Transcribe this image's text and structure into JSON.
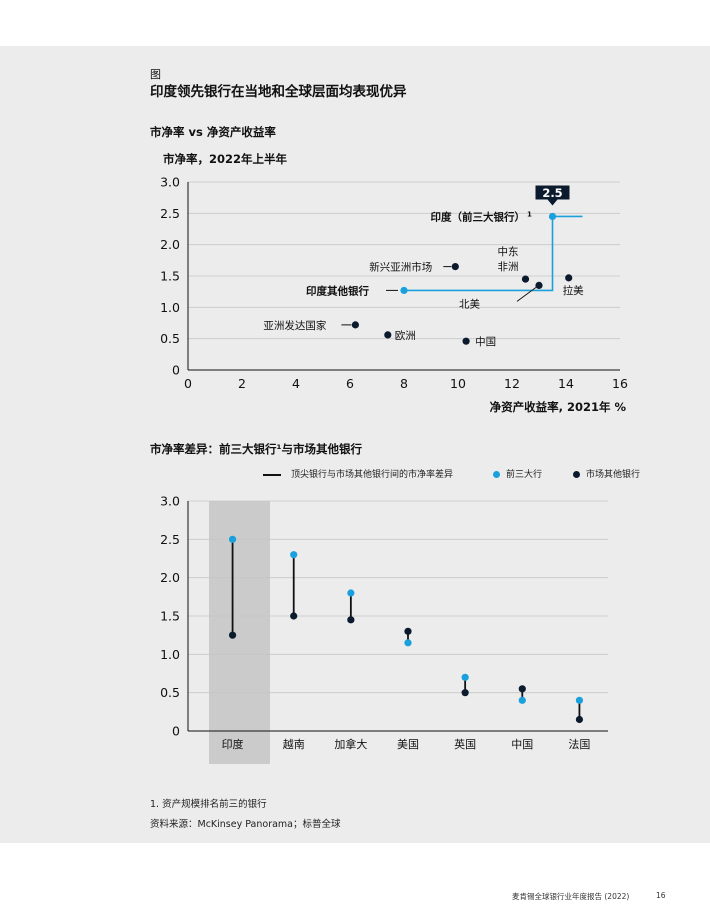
{
  "header": {
    "figure_label": "图",
    "figure_title": "印度领先银行在当地和全球层面均表现优异"
  },
  "chart1": {
    "title": "市净率 vs 净资产收益率",
    "subtitle": "市净率，2022年上半年"
  },
  "chart2": {
    "title": "市净率差异：前三大银行¹与市场其他银行",
    "legend": {
      "line_label": "顶尖银行与市场其他银行间的市净率差异",
      "top3_label": "前三大行",
      "others_label": "市场其他银行"
    }
  },
  "footnotes": {
    "note1": "1. 资产规模排名前三的银行",
    "source": "资料来源：McKinsey Panorama；标普全球"
  },
  "footer": {
    "report": "麦肯锡全球银行业年度报告 (2022)",
    "page": "16"
  },
  "colors": {
    "accent_blue": "#1aa0dc",
    "dark_point": "#0c1a2e",
    "panel_bg": "#ececec",
    "highlight_bg": "#cbcbcb"
  },
  "chart_data": [
    {
      "type": "scatter",
      "title": "市净率 vs 净资产收益率",
      "subtitle": "市净率，2022年上半年",
      "xlabel": "净资产收益率, 2021年 %",
      "ylabel": "",
      "xlim": [
        0,
        16
      ],
      "ylim": [
        0,
        3.0
      ],
      "x_ticks": [
        "0",
        "2",
        "4",
        "6",
        "8",
        "10",
        "12",
        "14",
        "16"
      ],
      "y_ticks": [
        "0",
        "0.5",
        "1.0",
        "1.5",
        "2.0",
        "2.5",
        "3.0"
      ],
      "grid": true,
      "points": [
        {
          "label": "印度（前三大银行）",
          "x": 13.5,
          "y": 2.45,
          "highlight": true,
          "callout": "2.5",
          "bold": true,
          "sup": "1"
        },
        {
          "label": "印度其他银行",
          "x": 8.0,
          "y": 1.27,
          "highlight": true,
          "bold": true
        },
        {
          "label": "新兴亚洲市场",
          "x": 9.9,
          "y": 1.65
        },
        {
          "label": "中东\n非洲",
          "x": 12.5,
          "y": 1.45
        },
        {
          "label": "北美",
          "x": 13.0,
          "y": 1.35
        },
        {
          "label": "拉美",
          "x": 14.1,
          "y": 1.47
        },
        {
          "label": "亚洲发达国家",
          "x": 6.2,
          "y": 0.72
        },
        {
          "label": "欧洲",
          "x": 7.4,
          "y": 0.56
        },
        {
          "label": "中国",
          "x": 10.3,
          "y": 0.46
        }
      ]
    },
    {
      "type": "dumbbell",
      "title": "市净率差异：前三大银行¹与市场其他银行",
      "ylim": [
        0,
        3.0
      ],
      "y_ticks": [
        "0",
        "0.5",
        "1.0",
        "1.5",
        "2.0",
        "2.5",
        "3.0"
      ],
      "grid": true,
      "categories": [
        "印度",
        "越南",
        "加拿大",
        "美国",
        "英国",
        "中国",
        "法国"
      ],
      "highlight_category": "印度",
      "series": [
        {
          "name": "前三大行",
          "values": [
            2.5,
            2.3,
            1.8,
            1.15,
            0.7,
            0.4,
            0.4
          ]
        },
        {
          "name": "市场其他银行",
          "values": [
            1.25,
            1.5,
            1.45,
            1.3,
            0.5,
            0.55,
            0.15
          ]
        }
      ]
    }
  ]
}
